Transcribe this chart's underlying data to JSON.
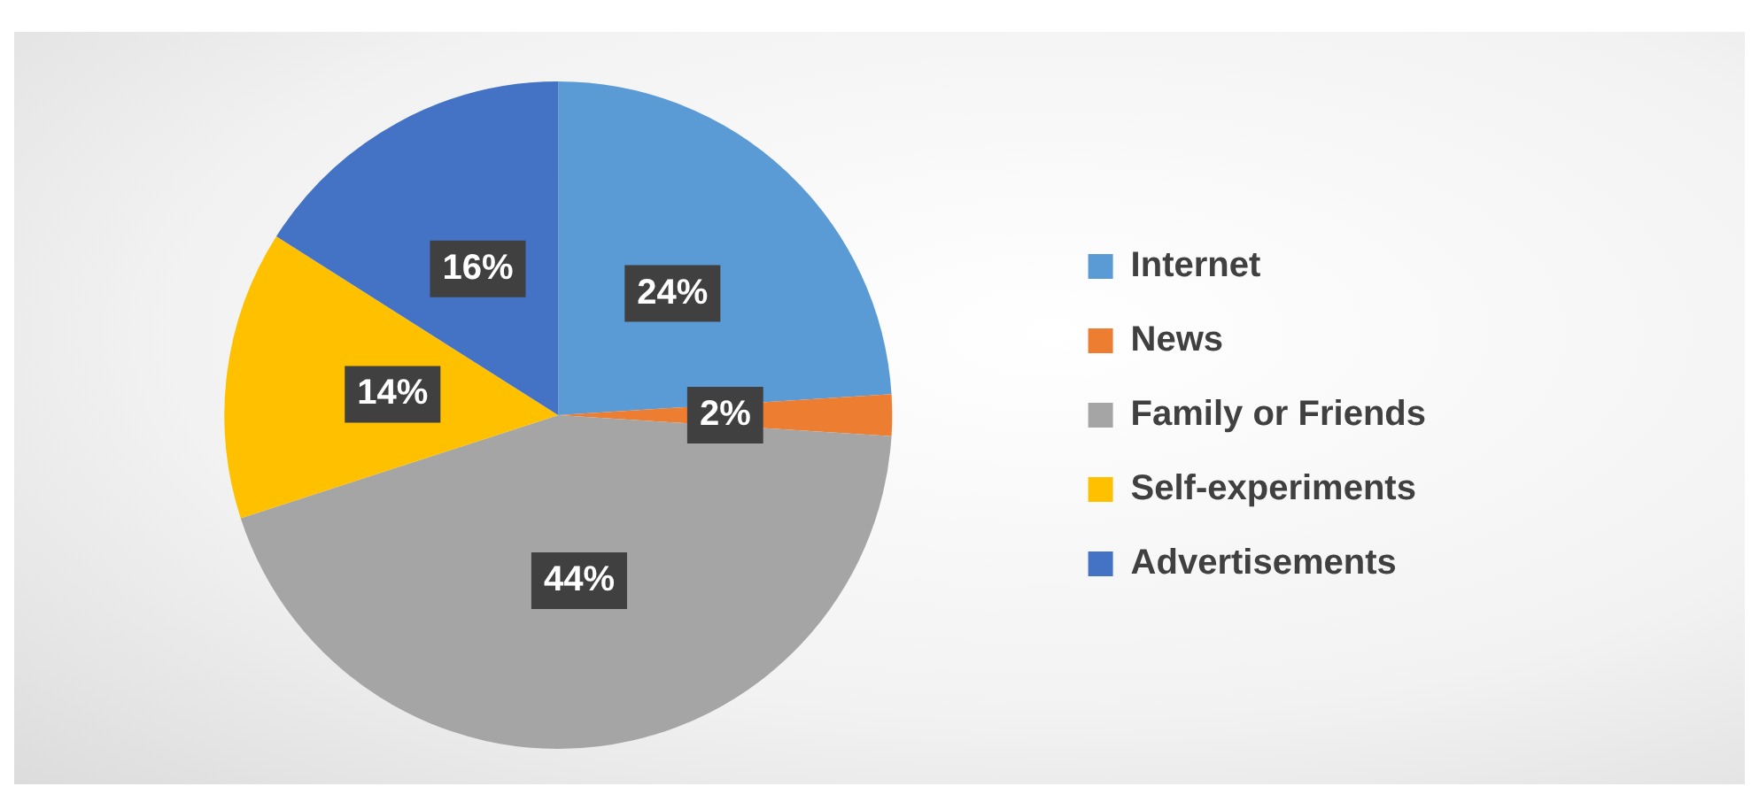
{
  "chart_data": {
    "type": "pie",
    "categories": [
      "Internet",
      "News",
      "Family or Friends",
      "Self-experiments",
      "Advertisements"
    ],
    "values": [
      24,
      2,
      44,
      14,
      16
    ],
    "colors": [
      "#5b9bd5",
      "#ed7d31",
      "#a5a5a5",
      "#ffc000",
      "#4472c4"
    ],
    "value_labels": [
      "24%",
      "2%",
      "44%",
      "14%",
      "16%"
    ],
    "legend": "right"
  }
}
